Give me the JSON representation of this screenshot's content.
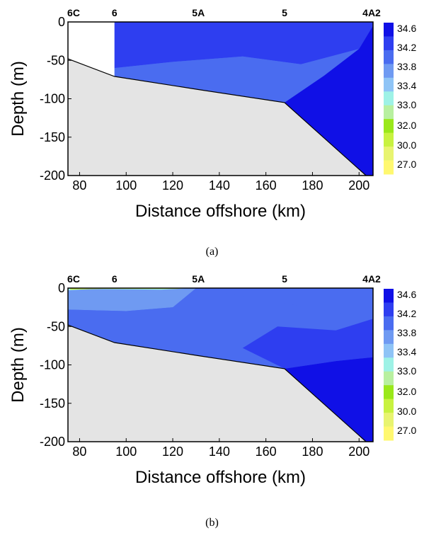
{
  "chart_data": [
    {
      "panel": "a",
      "type": "heatmap",
      "xlabel": "Distance offshore (km)",
      "ylabel": "Depth (m)",
      "xlim": [
        75,
        206
      ],
      "ylim": [
        -200,
        0
      ],
      "xticks": [
        80,
        100,
        120,
        140,
        160,
        180,
        200
      ],
      "yticks": [
        0,
        -50,
        -100,
        -150,
        -200
      ],
      "stations": [
        {
          "name": "6C",
          "x": 75
        },
        {
          "name": "6",
          "x": 95
        },
        {
          "name": "5A",
          "x": 131
        },
        {
          "name": "5",
          "x": 168
        },
        {
          "name": "4A2",
          "x": 203
        }
      ],
      "bathymetry": [
        [
          75,
          -48
        ],
        [
          95,
          -71
        ],
        [
          131,
          -88
        ],
        [
          168,
          -105
        ],
        [
          203,
          -200
        ]
      ],
      "data_start_x": 95,
      "colorbar_levels": [
        "34.6",
        "34.2",
        "33.8",
        "33.4",
        "33.0",
        "32.0",
        "30.0",
        "27.0"
      ],
      "colorbar_colors": [
        "#1010e6",
        "#2e3ef0",
        "#4a6cf0",
        "#6f9af2",
        "#8fc4f6",
        "#9ef2e6",
        "#b8f0a0",
        "#9ae81a",
        "#c8f240",
        "#e8f470",
        "#fff870"
      ],
      "regions": [
        {
          "level": "34.2",
          "polygon": [
            [
              95,
              0
            ],
            [
              206,
              0
            ],
            [
              206,
              -5
            ],
            [
              200,
              -35
            ],
            [
              175,
              -55
            ],
            [
              150,
              -45
            ],
            [
              120,
              -52
            ],
            [
              95,
              -60
            ]
          ]
        },
        {
          "level": "33.8",
          "polygon": [
            [
              95,
              -60
            ],
            [
              120,
              -52
            ],
            [
              150,
              -45
            ],
            [
              175,
              -55
            ],
            [
              185,
              -70
            ],
            [
              168,
              -105
            ],
            [
              95,
              -71
            ]
          ]
        },
        {
          "level": "34.6",
          "polygon": [
            [
              185,
              -70
            ],
            [
              200,
              -35
            ],
            [
              206,
              -5
            ],
            [
              206,
              -200
            ],
            [
              203,
              -200
            ],
            [
              168,
              -105
            ]
          ]
        }
      ],
      "caption": "(a)"
    },
    {
      "panel": "b",
      "type": "heatmap",
      "xlabel": "Distance offshore (km)",
      "ylabel": "Depth (m)",
      "xlim": [
        75,
        206
      ],
      "ylim": [
        -200,
        0
      ],
      "xticks": [
        80,
        100,
        120,
        140,
        160,
        180,
        200
      ],
      "yticks": [
        0,
        -50,
        -100,
        -150,
        -200
      ],
      "stations": [
        {
          "name": "6C",
          "x": 75
        },
        {
          "name": "6",
          "x": 95
        },
        {
          "name": "5A",
          "x": 131
        },
        {
          "name": "5",
          "x": 168
        },
        {
          "name": "4A2",
          "x": 203
        }
      ],
      "bathymetry": [
        [
          75,
          -48
        ],
        [
          95,
          -71
        ],
        [
          131,
          -88
        ],
        [
          168,
          -105
        ],
        [
          203,
          -200
        ]
      ],
      "data_start_x": 75,
      "colorbar_levels": [
        "34.6",
        "34.2",
        "33.8",
        "33.4",
        "33.0",
        "32.0",
        "30.0",
        "27.0"
      ],
      "colorbar_colors": [
        "#1010e6",
        "#2e3ef0",
        "#4a6cf0",
        "#6f9af2",
        "#8fc4f6",
        "#9ef2e6",
        "#b8f0a0",
        "#9ae81a",
        "#c8f240",
        "#e8f470",
        "#fff870"
      ],
      "regions": [
        {
          "level": "33.4",
          "polygon": [
            [
              75,
              0
            ],
            [
              130,
              0
            ],
            [
              120,
              -25
            ],
            [
              100,
              -30
            ],
            [
              75,
              -28
            ]
          ]
        },
        {
          "level": "33.8",
          "polygon": [
            [
              130,
              0
            ],
            [
              206,
              0
            ],
            [
              206,
              -10
            ],
            [
              180,
              -20
            ],
            [
              150,
              -25
            ],
            [
              120,
              -25
            ],
            [
              100,
              -30
            ],
            [
              75,
              -28
            ],
            [
              75,
              -48
            ],
            [
              95,
              -71
            ],
            [
              131,
              -88
            ],
            [
              150,
              -78
            ],
            [
              165,
              -50
            ],
            [
              190,
              -55
            ],
            [
              206,
              -40
            ]
          ]
        },
        {
          "level": "34.2",
          "polygon": [
            [
              206,
              -40
            ],
            [
              190,
              -55
            ],
            [
              165,
              -50
            ],
            [
              150,
              -78
            ],
            [
              168,
              -105
            ],
            [
              190,
              -95
            ],
            [
              206,
              -90
            ]
          ]
        },
        {
          "level": "34.6",
          "polygon": [
            [
              190,
              -95
            ],
            [
              168,
              -105
            ],
            [
              203,
              -200
            ],
            [
              206,
              -200
            ],
            [
              206,
              -90
            ]
          ]
        },
        {
          "level": "33.0",
          "polygon": [
            [
              75,
              -3
            ],
            [
              85,
              -1
            ],
            [
              115,
              -2
            ],
            [
              128,
              0
            ],
            [
              75,
              0
            ]
          ]
        },
        {
          "level": "30.0",
          "polygon": [
            [
              76,
              -2
            ],
            [
              90,
              -1
            ],
            [
              110,
              -1
            ],
            [
              122,
              -1
            ],
            [
              126,
              0
            ],
            [
              76,
              0
            ]
          ]
        }
      ],
      "caption": "(b)"
    }
  ]
}
